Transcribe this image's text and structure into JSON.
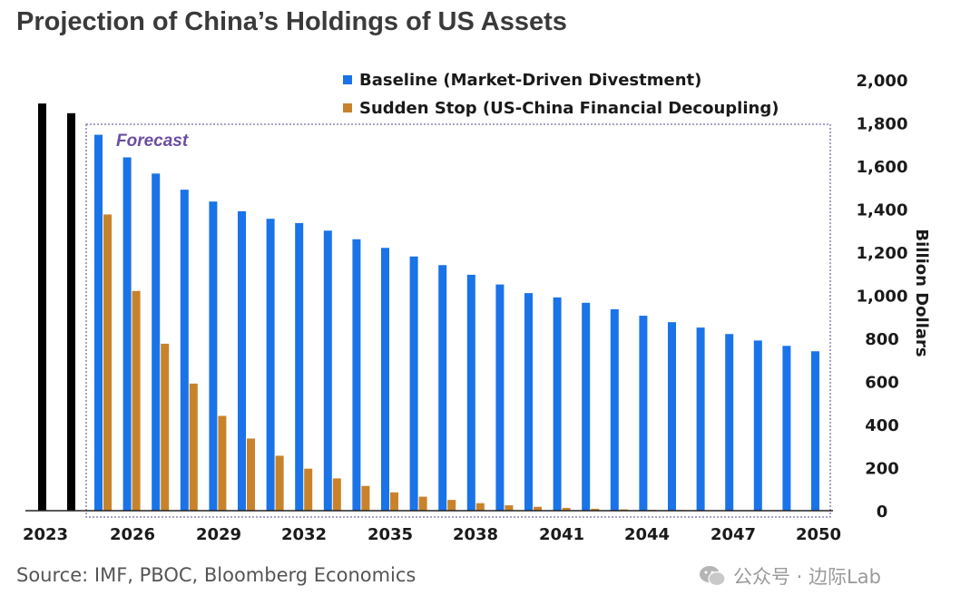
{
  "chart_data": {
    "type": "bar",
    "title": "Projection of China’s Holdings of US Assets",
    "ylabel": "Billion Dollars",
    "xlabel": "",
    "ylim": [
      0,
      2000
    ],
    "yticks": [
      "0",
      "200",
      "400",
      "600",
      "800",
      "1,000",
      "1,200",
      "1,400",
      "1,600",
      "1,800",
      "2,000"
    ],
    "ytick_values": [
      0,
      200,
      400,
      600,
      800,
      1000,
      1200,
      1400,
      1600,
      1800,
      2000
    ],
    "xtick_labels": [
      "2023",
      "2026",
      "2029",
      "2032",
      "2035",
      "2038",
      "2041",
      "2044",
      "2047",
      "2050"
    ],
    "annotation": "Forecast",
    "historical": {
      "color": "#000000",
      "values": [
        1890,
        1845
      ]
    },
    "categories": [
      "2025",
      "2026",
      "2027",
      "2028",
      "2029",
      "2030",
      "2031",
      "2032",
      "2033",
      "2034",
      "2035",
      "2036",
      "2037",
      "2038",
      "2039",
      "2040",
      "2041",
      "2042",
      "2043",
      "2044",
      "2045",
      "2046",
      "2047",
      "2048",
      "2049",
      "2050"
    ],
    "series": [
      {
        "name": "Baseline (Market-Driven Divestment)",
        "color": "#1a73e8",
        "values": [
          1745,
          1640,
          1565,
          1490,
          1435,
          1390,
          1355,
          1335,
          1300,
          1260,
          1220,
          1180,
          1140,
          1095,
          1050,
          1010,
          990,
          965,
          935,
          905,
          875,
          850,
          820,
          790,
          765,
          740
        ]
      },
      {
        "name": "Sudden Stop (US-China Financial Decoupling)",
        "color": "#c8832a",
        "values": [
          1375,
          1020,
          775,
          590,
          440,
          335,
          255,
          195,
          150,
          115,
          85,
          65,
          50,
          35,
          25,
          18,
          13,
          9,
          6,
          4,
          3,
          2,
          1,
          1,
          0,
          0
        ]
      }
    ]
  },
  "footer": {
    "source": "Source: IMF, PBOC, Bloomberg Economics",
    "watermark": "公众号 · 边际Lab"
  }
}
